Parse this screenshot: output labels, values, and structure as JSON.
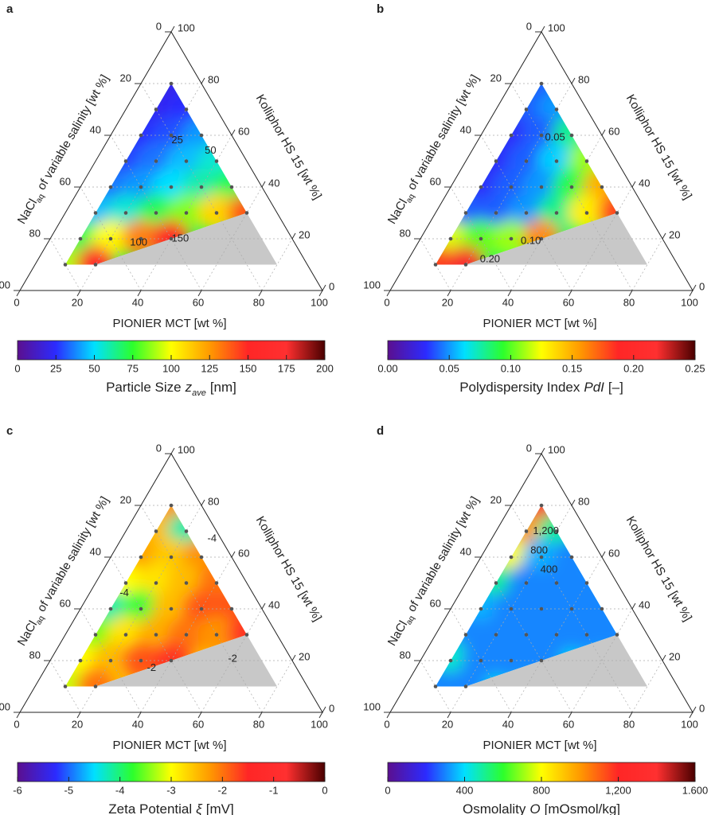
{
  "chart_data": [
    {
      "type": "ternary",
      "panel": "a",
      "grid": true,
      "bottom_label": "PIONIER MCT [wt %]",
      "right_label": "Kolliphor HS 15 [wt %]",
      "left_label": [
        {
          "text": "NaCl"
        },
        {
          "text": "aq",
          "sub": true
        },
        {
          "text": "of variable salinity [wt %]"
        }
      ],
      "ticks": [
        0,
        20,
        40,
        60,
        80,
        100
      ],
      "mct": [
        10,
        10,
        20,
        10,
        20,
        30,
        10,
        20,
        30,
        40,
        10,
        20,
        30,
        40,
        50,
        10,
        20,
        30,
        40,
        50,
        60,
        10,
        20,
        30,
        40,
        10,
        20
      ],
      "kolliphor": [
        80,
        70,
        70,
        60,
        60,
        60,
        50,
        50,
        50,
        50,
        40,
        40,
        40,
        40,
        40,
        30,
        30,
        30,
        30,
        30,
        30,
        20,
        20,
        20,
        20,
        10,
        10
      ],
      "values": [
        20,
        22,
        25,
        25,
        30,
        40,
        28,
        35,
        45,
        55,
        35,
        40,
        50,
        60,
        70,
        45,
        55,
        70,
        85,
        110,
        140,
        70,
        100,
        130,
        150,
        90,
        160
      ],
      "zlim": [
        0,
        200
      ],
      "zticks": [
        0,
        25,
        50,
        75,
        100,
        125,
        150,
        175,
        200
      ],
      "colorbar_label": [
        {
          "text": "Particle Size"
        },
        {
          "text": "z",
          "italic": true
        },
        {
          "text": "ave",
          "italic": true,
          "sub": true
        },
        {
          "text": "[nm]"
        }
      ],
      "contours": [
        25,
        50,
        100,
        150
      ],
      "colormap": [
        "#5b0f8f",
        "#2b2bff",
        "#00e0ff",
        "#2cff2c",
        "#ffff00",
        "#ff9a00",
        "#ff2626",
        "#ff3030",
        "#4a0000"
      ]
    },
    {
      "type": "ternary",
      "panel": "b",
      "grid": true,
      "bottom_label": "PIONIER MCT [wt %]",
      "right_label": "Kolliphor HS 15 [wt %]",
      "left_label": [
        {
          "text": "NaCl"
        },
        {
          "text": "aq",
          "sub": true
        },
        {
          "text": "of variable salinity [wt %]"
        }
      ],
      "ticks": [
        0,
        20,
        40,
        60,
        80,
        100
      ],
      "mct": [
        10,
        10,
        20,
        10,
        20,
        30,
        10,
        20,
        30,
        40,
        10,
        20,
        30,
        40,
        50,
        10,
        20,
        30,
        40,
        50,
        60,
        10,
        20,
        30,
        40,
        10,
        20
      ],
      "kolliphor": [
        80,
        70,
        70,
        60,
        60,
        60,
        50,
        50,
        50,
        50,
        40,
        40,
        40,
        40,
        40,
        30,
        30,
        30,
        30,
        30,
        30,
        20,
        20,
        20,
        20,
        10,
        10
      ],
      "values": [
        0.04,
        0.04,
        0.05,
        0.03,
        0.04,
        0.08,
        0.03,
        0.04,
        0.06,
        0.11,
        0.03,
        0.04,
        0.05,
        0.09,
        0.15,
        0.04,
        0.04,
        0.05,
        0.08,
        0.13,
        0.18,
        0.12,
        0.1,
        0.11,
        0.16,
        0.18,
        0.22
      ],
      "zlim": [
        0,
        0.25
      ],
      "zticks": [
        {
          "value": 0,
          "label": "0.00"
        },
        0.05,
        {
          "value": 0.1,
          "label": "0.10"
        },
        0.15,
        {
          "value": 0.2,
          "label": "0.20"
        },
        0.25
      ],
      "colorbar_label": [
        {
          "text": "Polydispersity Index"
        },
        {
          "text": "PdI",
          "italic": true
        },
        {
          "text": "[–]"
        }
      ],
      "contours": [
        0.05,
        {
          "value": 0.1,
          "label": "0.10"
        },
        {
          "value": 0.2,
          "label": "0.20"
        }
      ],
      "colormap": [
        "#5b0f8f",
        "#2b2bff",
        "#00e0ff",
        "#2cff2c",
        "#ffff00",
        "#ff9a00",
        "#ff2626",
        "#ff3030",
        "#4a0000"
      ]
    },
    {
      "type": "ternary",
      "panel": "c",
      "grid": true,
      "bottom_label": "PIONIER MCT [wt %]",
      "right_label": "Kolliphor HS 15 [wt %]",
      "left_label": [
        {
          "text": "NaCl"
        },
        {
          "text": "aq",
          "sub": true
        },
        {
          "text": "of variable salinity [wt %]"
        }
      ],
      "ticks": [
        0,
        20,
        40,
        60,
        80,
        100
      ],
      "mct": [
        10,
        10,
        20,
        10,
        20,
        30,
        10,
        20,
        30,
        40,
        10,
        20,
        30,
        40,
        50,
        10,
        20,
        30,
        40,
        50,
        60,
        10,
        20,
        30,
        40,
        10,
        20
      ],
      "kolliphor": [
        80,
        70,
        70,
        60,
        60,
        60,
        50,
        50,
        50,
        50,
        40,
        40,
        40,
        40,
        40,
        30,
        30,
        30,
        30,
        30,
        30,
        20,
        20,
        20,
        20,
        10,
        10
      ],
      "values": [
        -2.2,
        -2.5,
        -4.2,
        -2.3,
        -2.6,
        -2.2,
        -3,
        -2.8,
        -2.5,
        -2,
        -4.2,
        -3.8,
        -2.5,
        -1.8,
        -1.8,
        -3.5,
        -2.8,
        -2.4,
        -2,
        -2.2,
        -1.6,
        -3,
        -2.5,
        -1.8,
        -1.6,
        -3.2,
        -2
      ],
      "zlim": [
        -6,
        0
      ],
      "zticks": [
        -6,
        -5,
        -4,
        -3,
        -2,
        -1,
        0
      ],
      "colorbar_label": [
        {
          "text": "Zeta Potential"
        },
        {
          "text": "ξ",
          "italic": true
        },
        {
          "text": "[mV]"
        }
      ],
      "contours": [
        -4,
        -4,
        -2,
        -2
      ],
      "colormap": [
        "#5b0f8f",
        "#2b2bff",
        "#00e0ff",
        "#2cff2c",
        "#ffff00",
        "#ff9a00",
        "#ff2626",
        "#ff3030",
        "#4a0000"
      ]
    },
    {
      "type": "ternary",
      "panel": "d",
      "grid": true,
      "bottom_label": "PIONIER MCT [wt %]",
      "right_label": "Kolliphor HS 15 [wt %]",
      "left_label": [
        {
          "text": "NaCl"
        },
        {
          "text": "aq",
          "sub": true
        },
        {
          "text": "of variable salinity [wt %]"
        }
      ],
      "ticks": [
        0,
        20,
        40,
        60,
        80,
        100
      ],
      "mct": [
        10,
        10,
        20,
        10,
        20,
        30,
        10,
        20,
        30,
        40,
        10,
        20,
        30,
        40,
        50,
        10,
        20,
        30,
        40,
        50,
        60,
        10,
        20,
        30,
        40,
        10,
        20
      ],
      "kolliphor": [
        80,
        70,
        70,
        60,
        60,
        60,
        50,
        50,
        50,
        50,
        40,
        40,
        40,
        40,
        40,
        30,
        30,
        30,
        30,
        30,
        30,
        20,
        20,
        20,
        20,
        10,
        10
      ],
      "values": [
        1400,
        1000,
        500,
        800,
        350,
        300,
        500,
        300,
        300,
        300,
        350,
        300,
        300,
        300,
        300,
        300,
        300,
        300,
        300,
        300,
        300,
        450,
        300,
        300,
        300,
        300,
        300
      ],
      "zlim": [
        0,
        1600
      ],
      "zticks": [
        0,
        400,
        800,
        {
          "value": 1200,
          "label": "1,200"
        },
        {
          "value": 1600,
          "label": "1.600"
        }
      ],
      "colorbar_label": [
        {
          "text": "Osmolality"
        },
        {
          "text": "O",
          "italic": true
        },
        {
          "text": "[mOsmol/kg]"
        }
      ],
      "contours": [
        {
          "value": 1200,
          "label": "1,200"
        },
        800,
        400
      ],
      "colormap": [
        "#5b0f8f",
        "#2b2bff",
        "#00e0ff",
        "#2cff2c",
        "#ffff00",
        "#ff9a00",
        "#ff2626",
        "#ff3030",
        "#4a0000"
      ]
    }
  ]
}
